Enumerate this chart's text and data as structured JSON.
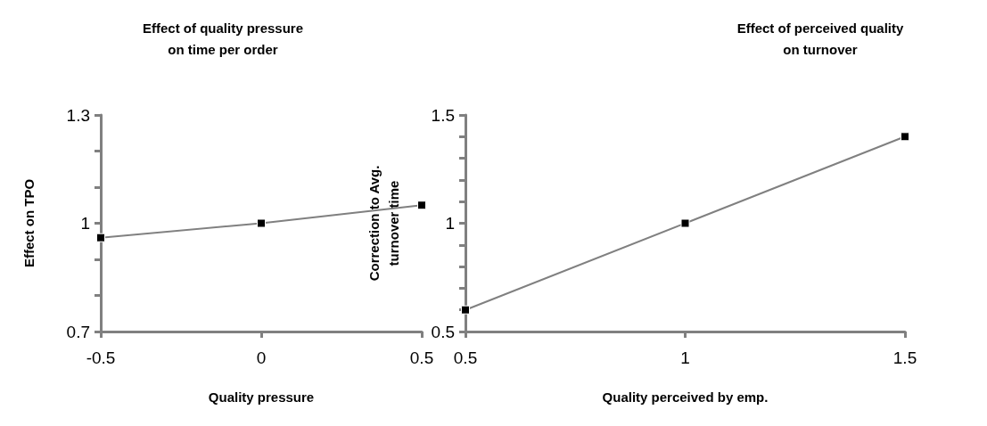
{
  "chart_data": [
    {
      "type": "line",
      "title": "Effect of quality pressure\non time per order",
      "xlabel": "Quality pressure",
      "ylabel": "Effect on TPO",
      "x": [
        -0.5,
        0,
        0.5
      ],
      "series": [
        {
          "color": "#808080",
          "values": [
            0.96,
            1,
            1.05
          ]
        }
      ],
      "xlim": [
        -0.5,
        0.5
      ],
      "xticks": [
        -0.5,
        0,
        0.5
      ],
      "ylim": [
        0.7,
        1.3
      ],
      "yticks": [
        0.7,
        {
          "value": 0.8,
          "label": null
        },
        {
          "value": 0.9,
          "label": null
        },
        1,
        {
          "value": 1.1,
          "label": null
        },
        {
          "value": 1.2,
          "label": null
        },
        1.3
      ],
      "marker": "square",
      "line_style": "solid"
    },
    {
      "type": "line",
      "title": "Effect of perceived quality\non turnover",
      "xlabel": "Quality perceived by emp.",
      "ylabel": "Correction to Avg.\nturnover time",
      "x": [
        0.5,
        1,
        1.5
      ],
      "series": [
        {
          "color": "#808080",
          "values": [
            0.6,
            1,
            1.4
          ]
        }
      ],
      "xlim": [
        0.5,
        1.5
      ],
      "xticks": [
        0.5,
        1,
        1.5
      ],
      "ylim": [
        0.5,
        1.5
      ],
      "yticks": [
        0.5,
        {
          "value": 0.6,
          "label": null
        },
        {
          "value": 0.7,
          "label": null
        },
        {
          "value": 0.8,
          "label": null
        },
        {
          "value": 0.9,
          "label": null
        },
        1,
        {
          "value": 1.1,
          "label": null
        },
        {
          "value": 1.2,
          "label": null
        },
        {
          "value": 1.3,
          "label": null
        },
        {
          "value": 1.4,
          "label": null
        },
        1.5
      ],
      "marker": "square",
      "line_style": "solid"
    }
  ]
}
